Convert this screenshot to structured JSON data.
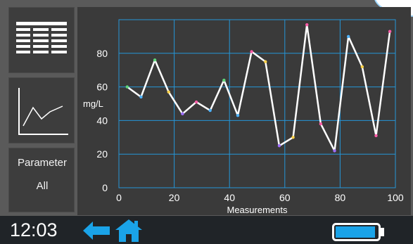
{
  "status_bar": {
    "time": "12:03"
  },
  "sidebar": {
    "parameter_label": "Parameter",
    "parameter_value": "All"
  },
  "icons": {
    "table": "table-icon",
    "chart": "line-chart-icon",
    "back": "back-arrow-icon",
    "home": "home-icon",
    "battery": "battery-icon"
  },
  "colors": {
    "accent": "#1aa3e8",
    "grid": "#2596d8",
    "line": "#ffffff",
    "panel": "#3a3a3a",
    "background": "#5a5a5a",
    "status_bar": "#202428"
  },
  "battery": {
    "level": 0.95
  },
  "chart_data": {
    "type": "line",
    "xlabel": "Measurements",
    "ylabel": "mg/L",
    "xlim": [
      0,
      100
    ],
    "ylim": [
      0,
      100
    ],
    "x_ticks": [
      "0",
      "20",
      "40",
      "60",
      "80",
      "100"
    ],
    "y_ticks": [
      "0",
      "20",
      "40",
      "60",
      "80"
    ],
    "grid": true,
    "series": [
      {
        "x": [
          3,
          8,
          13,
          18,
          23,
          28,
          33,
          38,
          43,
          48,
          53,
          58,
          63,
          68,
          73,
          78,
          83,
          88,
          93,
          98
        ],
        "y": [
          60,
          54,
          76,
          57,
          44,
          51,
          46,
          64,
          43,
          81,
          75,
          25,
          30,
          97,
          38,
          22,
          90,
          72,
          31,
          93
        ],
        "marker_colors": [
          "#5fd67a",
          "#4fb3ff",
          "#5fd67a",
          "#ffd24a",
          "#a070ff",
          "#ff5ca8",
          "#4fb3ff",
          "#5fd67a",
          "#4fb3ff",
          "#ff5ca8",
          "#ffd24a",
          "#a070ff",
          "#ffd24a",
          "#ff5ca8",
          "#ff5ca8",
          "#a070ff",
          "#4fb3ff",
          "#ffd24a",
          "#ff5ca8",
          "#ff5ca8"
        ]
      }
    ]
  }
}
